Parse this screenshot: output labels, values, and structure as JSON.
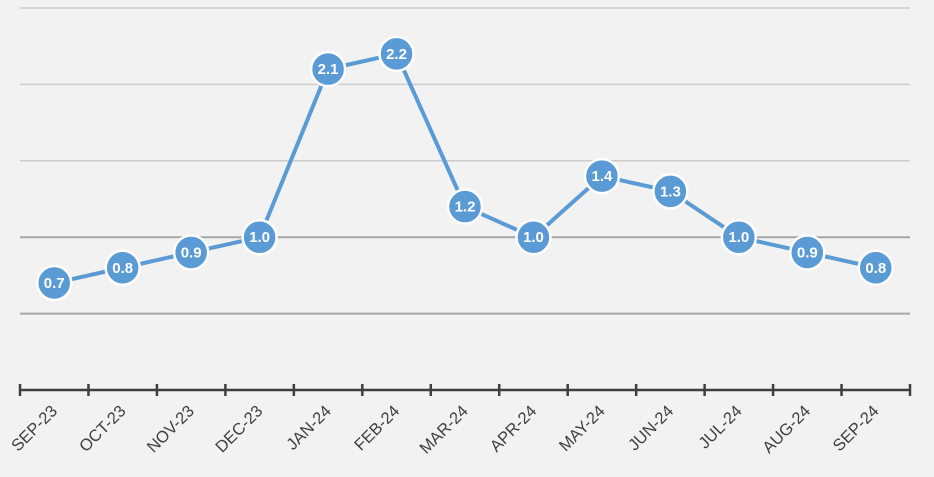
{
  "chart_data": {
    "type": "line",
    "categories": [
      "SEP-23",
      "OCT-23",
      "NOV-23",
      "DEC-23",
      "JAN-24",
      "FEB-24",
      "MAR-24",
      "APR-24",
      "MAY-24",
      "JUN-24",
      "JUL-24",
      "AUG-24",
      "SEP-24"
    ],
    "series": [
      {
        "values": [
          0.7,
          0.8,
          0.9,
          1.0,
          2.1,
          2.2,
          1.2,
          1.0,
          1.4,
          1.3,
          1.0,
          0.9,
          0.8
        ]
      }
    ],
    "data_labels": [
      "0.7",
      "0.8",
      "0.9",
      "1.0",
      "2.1",
      "2.2",
      "1.2",
      "1.0",
      "1.4",
      "1.3",
      "1.0",
      "0.9",
      "0.8"
    ],
    "ylim": [
      0,
      2.5
    ],
    "y_gridlines": [
      0.5,
      1.0,
      1.5,
      2.0,
      2.5
    ],
    "highlighted_gridlines": [
      0.5,
      1.0
    ],
    "grid": true,
    "y_tick_labels_shown": false,
    "legend": "none",
    "title": "",
    "xlabel": "",
    "ylabel": "",
    "colors": {
      "line": "#5b9bd5",
      "marker": "#5b9bd5",
      "marker_edge": "#ffffff",
      "data_label": "#ffffff",
      "background": "#f2f2f2",
      "grid": "#cccccc",
      "grid_dark": "#a6a6a6",
      "axis": "#3f3f3f"
    }
  }
}
